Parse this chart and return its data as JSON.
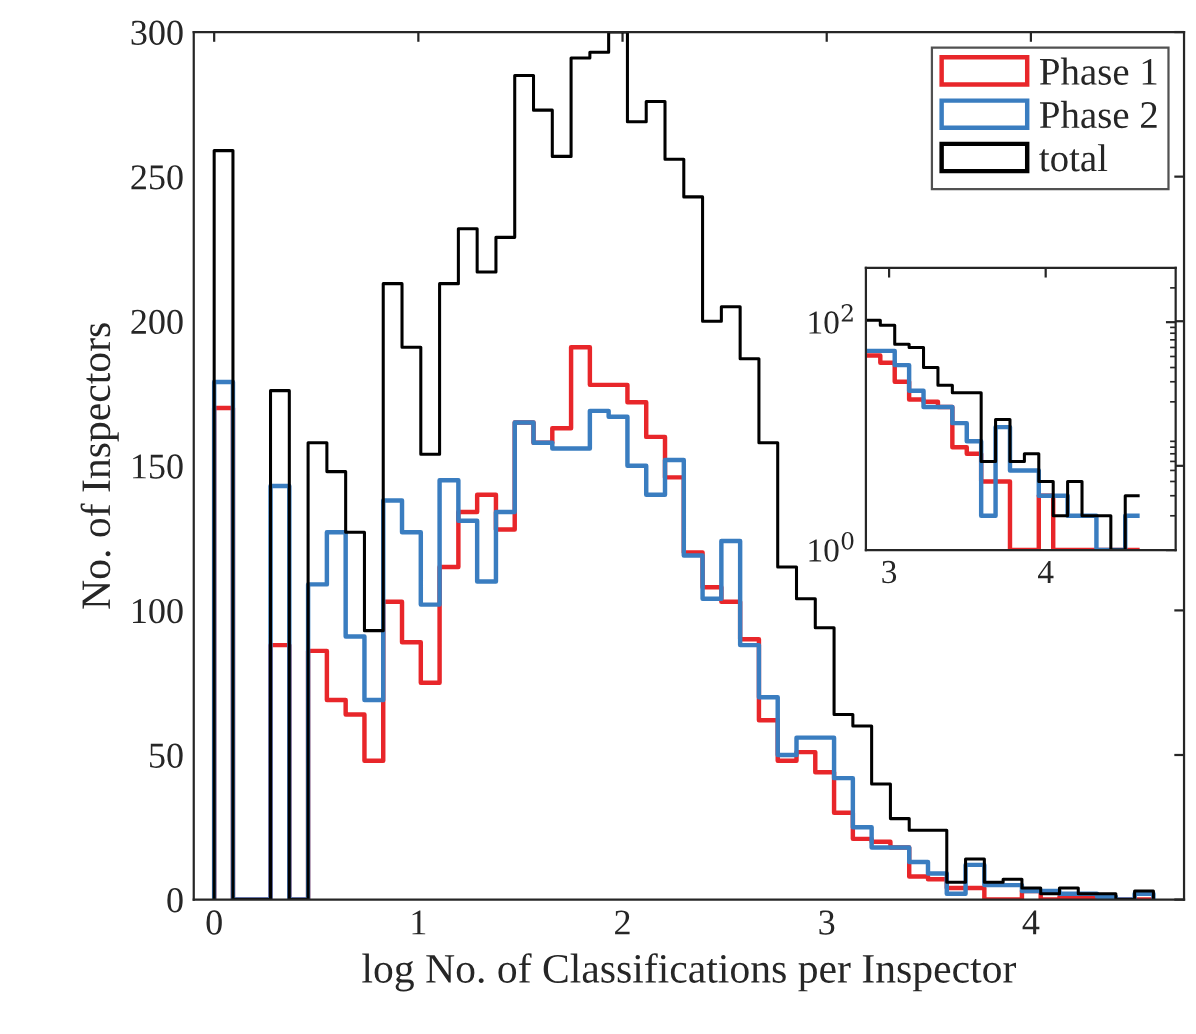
{
  "chart_data": [
    {
      "type": "histogram",
      "xlabel": "log No. of Classifications per Inspector",
      "ylabel": "No. of Inspectors",
      "bins": [
        0,
        0.092,
        0.184,
        0.276,
        0.368,
        0.46,
        0.552,
        0.644,
        0.736,
        0.828,
        0.92,
        1.012,
        1.104,
        1.196,
        1.288,
        1.38,
        1.472,
        1.564,
        1.656,
        1.748,
        1.84,
        1.932,
        2.024,
        2.116,
        2.208,
        2.3,
        2.392,
        2.484,
        2.576,
        2.668,
        2.76,
        2.852,
        2.944,
        3.036,
        3.128,
        3.22,
        3.312,
        3.404,
        3.496,
        3.588,
        3.68,
        3.772,
        3.864,
        3.956,
        4.048,
        4.14,
        4.232,
        4.324,
        4.416,
        4.508,
        4.6
      ],
      "series": [
        {
          "name": "Phase 1",
          "color": "#e8262a",
          "values": [
            170,
            0,
            0,
            88,
            0,
            86,
            69,
            64,
            48,
            103,
            89,
            75,
            115,
            134,
            140,
            128,
            165,
            158,
            163,
            191,
            178,
            178,
            172,
            160,
            146,
            120,
            108,
            103,
            90,
            62,
            48,
            51,
            44,
            30,
            21,
            20,
            18,
            8,
            7,
            4,
            4,
            0,
            0,
            3,
            0,
            1,
            1,
            0,
            0,
            0
          ]
        },
        {
          "name": "Phase 2",
          "color": "#3a7dc0",
          "values": [
            179,
            0,
            0,
            143,
            0,
            109,
            127,
            91,
            69,
            138,
            127,
            102,
            145,
            131,
            110,
            134,
            165,
            158,
            156,
            156,
            169,
            167,
            150,
            140,
            152,
            119,
            104,
            124,
            88,
            70,
            50,
            56,
            56,
            42,
            25,
            18,
            18,
            13,
            9,
            2,
            12,
            5,
            5,
            3,
            3,
            2,
            2,
            1,
            0,
            2
          ]
        },
        {
          "name": "total",
          "color": "#000000",
          "values": [
            259,
            0,
            0,
            176,
            0,
            158,
            148,
            127,
            93,
            213,
            191,
            154,
            213,
            232,
            217,
            229,
            285,
            273,
            257,
            291,
            293,
            300,
            269,
            276,
            256,
            243,
            200,
            205,
            187,
            158,
            115,
            104,
            94,
            64,
            60,
            40,
            28,
            24,
            24,
            6,
            14,
            6,
            7,
            4,
            2,
            4,
            2,
            2,
            0,
            3
          ]
        }
      ],
      "xlim": [
        -0.1,
        4.75
      ],
      "ylim": [
        0,
        300
      ],
      "xticks": [
        0,
        1,
        2,
        3,
        4
      ],
      "yticks": [
        0,
        50,
        100,
        150,
        200,
        250,
        300
      ],
      "legend": "top right",
      "grid": false
    },
    {
      "type": "histogram",
      "bins": [
        2.852,
        2.944,
        3.036,
        3.128,
        3.22,
        3.312,
        3.404,
        3.496,
        3.588,
        3.68,
        3.772,
        3.864,
        3.956,
        4.048,
        4.14,
        4.232,
        4.324,
        4.416,
        4.508,
        4.6
      ],
      "series": [
        {
          "color": "#e8262a",
          "values": [
            51,
            44,
            30,
            21,
            20,
            18,
            8,
            7,
            4,
            4,
            1,
            1,
            3,
            1,
            1,
            1,
            1,
            1,
            1
          ]
        },
        {
          "color": "#3a7dc0",
          "values": [
            56,
            56,
            42,
            25,
            18,
            18,
            13,
            9,
            2,
            12,
            5,
            5,
            3,
            3,
            2,
            2,
            1,
            1,
            2
          ]
        },
        {
          "color": "#000000",
          "values": [
            104,
            94,
            64,
            60,
            40,
            28,
            24,
            24,
            6,
            14,
            6,
            7,
            4,
            2,
            4,
            2,
            2,
            1,
            3
          ]
        }
      ],
      "log": "y",
      "xlim": [
        2.852,
        4.83
      ],
      "ylim": [
        1,
        300
      ],
      "xticks": [
        3,
        4
      ],
      "yticks": [
        {
          "value": 1,
          "label": "10$^{0}$"
        },
        {
          "value": 100,
          "label": "10$^{2}$"
        }
      ],
      "grid": false
    }
  ]
}
